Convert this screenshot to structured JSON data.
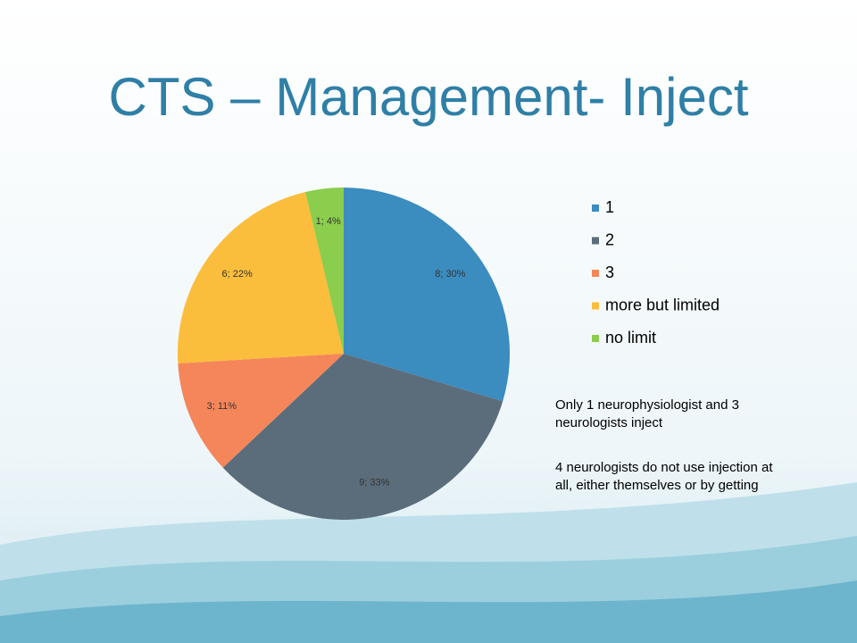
{
  "chart_data": {
    "type": "pie",
    "title": "CTS – Management- Inject",
    "categories": [
      "1",
      "2",
      "3",
      "more but limited",
      "no limit"
    ],
    "values": [
      8,
      9,
      3,
      6,
      1
    ],
    "value_labels": [
      "8; 30%",
      "9; 33%",
      "3; 11%",
      "6; 22%",
      "1; 4%"
    ],
    "colors": [
      "#3b8cbf",
      "#5b6d7b",
      "#f5865a",
      "#fbbd3c",
      "#8bcd4c"
    ],
    "legend": "right",
    "annotations": [
      "Only 1 neurophysiologist and 3 neurologists inject",
      "4 neurologists do not use injection at all, either themselves or by getting"
    ]
  }
}
